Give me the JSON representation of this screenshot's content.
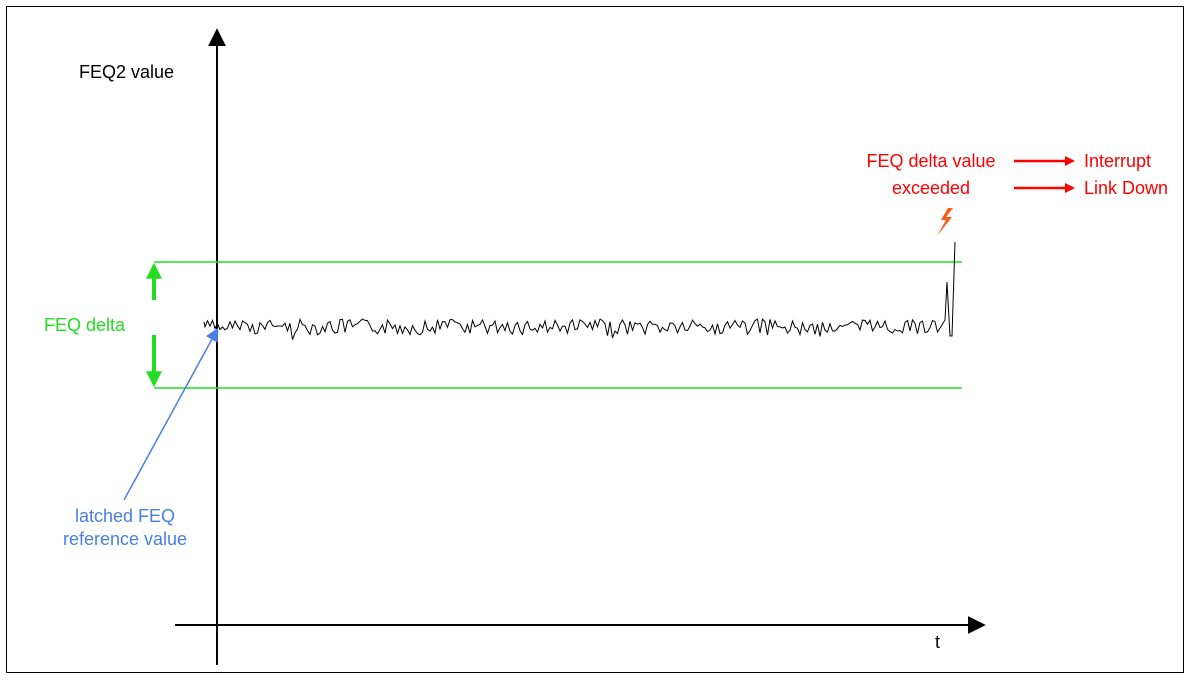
{
  "y_axis_label": "FEQ2 value",
  "x_axis_label": "t",
  "band_label": "FEQ delta",
  "reference_label": [
    "latched FEQ",
    "reference value"
  ],
  "exceeded_label": [
    "FEQ delta value",
    "exceeded"
  ],
  "outcomes": [
    "Interrupt",
    "Link Down"
  ],
  "colors": {
    "axis": "#000000",
    "band": "#22dd22",
    "reference": "#4a7ee0",
    "alert": "#ff0000",
    "lightning": "#ff5a14",
    "signal": "#000000"
  },
  "icons": [
    "lightning-bolt-icon"
  ]
}
